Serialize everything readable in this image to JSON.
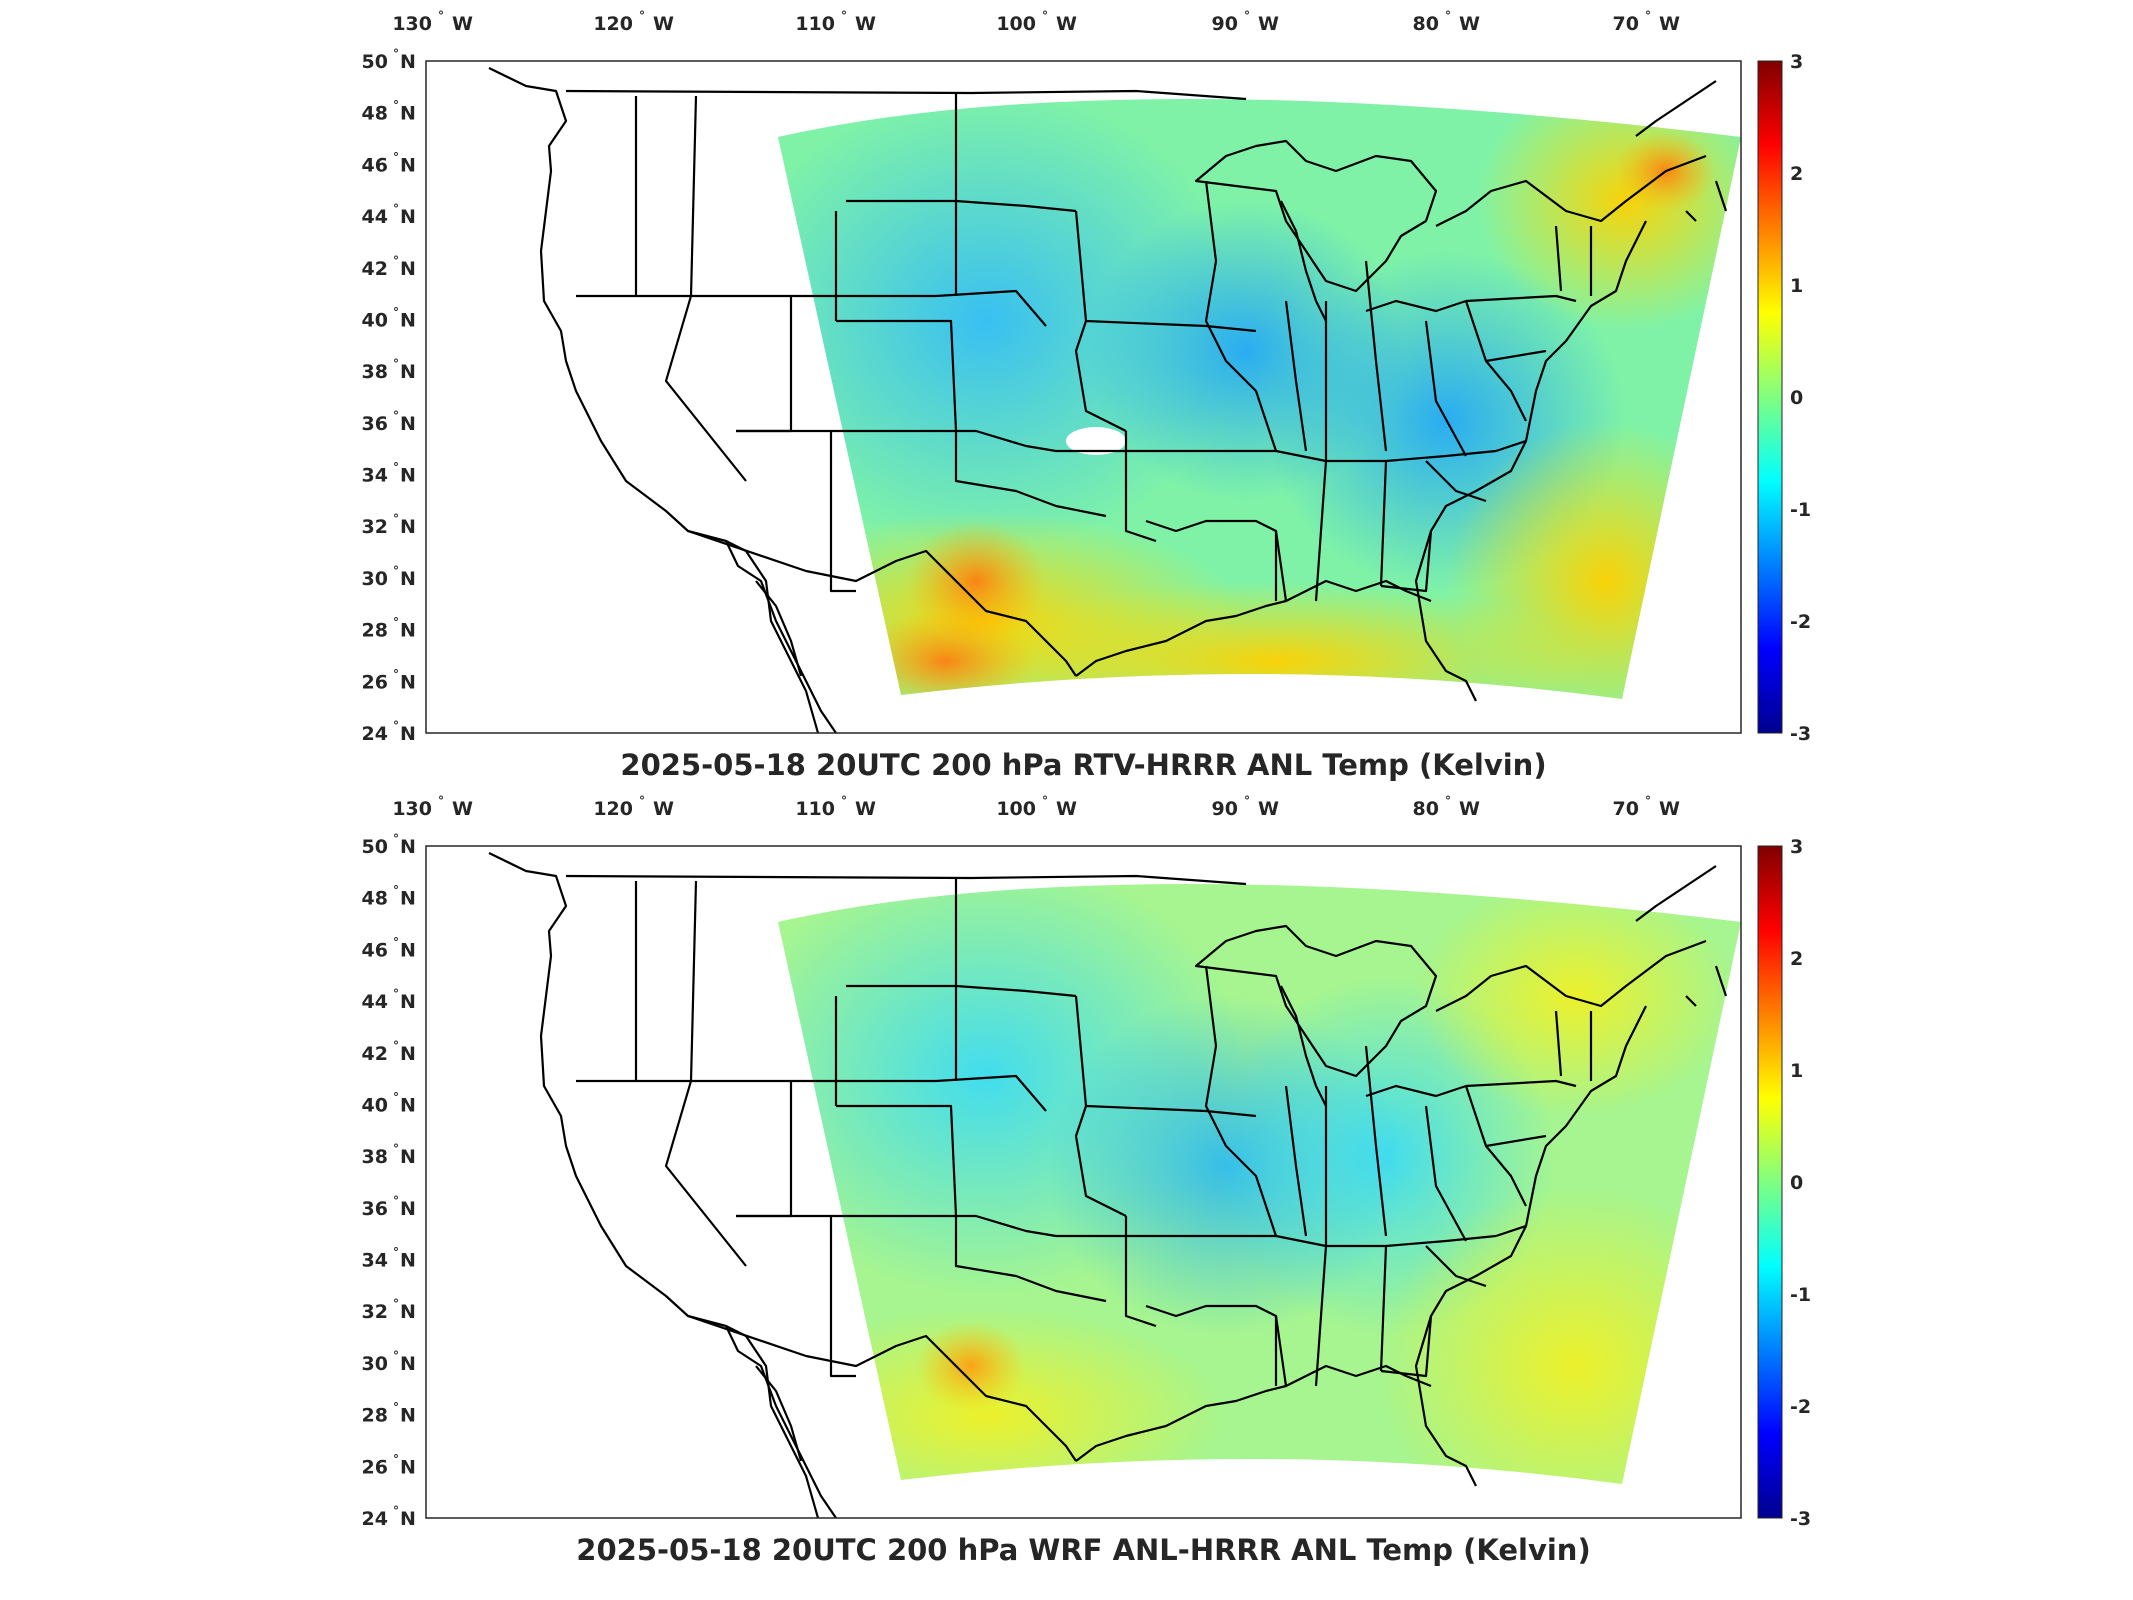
{
  "panels": [
    {
      "title": "2025-05-18 20UTC 200 hPa RTV-HRRR ANL Temp (Kelvin)",
      "field": "rtv",
      "description_colors": {
        "west_region": "bluish cyan",
        "texas": "orange",
        "gulf": "yellow"
      }
    },
    {
      "title": "2025-05-18 20UTC 200 hPa WRF ANL-HRRR ANL Temp (Kelvin)",
      "field": "wrf",
      "description_colors": {
        "west_region": "cyan",
        "texas": "orange",
        "gulf": "yellow-green"
      }
    }
  ],
  "axes": {
    "lon_labels": [
      "130",
      "120",
      "110",
      "100",
      "90",
      "80",
      "70"
    ],
    "lon_suffix": "W",
    "lat_labels": [
      "50",
      "48",
      "46",
      "44",
      "42",
      "40",
      "38",
      "36",
      "34",
      "32",
      "30",
      "28",
      "26",
      "24"
    ],
    "lat_suffix": "N",
    "degree_symbol": "°"
  },
  "colorbar": {
    "ticks": [
      "3",
      "2",
      "1",
      "0",
      "-1",
      "-2",
      "-3"
    ],
    "colormap": "jet",
    "range": [
      -3,
      3
    ],
    "colors": [
      "#00008f",
      "#0000ff",
      "#0080ff",
      "#00ffff",
      "#80ff80",
      "#ffff00",
      "#ff8000",
      "#ff0000",
      "#800000"
    ]
  },
  "map": {
    "projection": "Lambert conformal (HRRR domain)",
    "domain_fill_note": "curved HRRR domain shaded by temperature difference"
  }
}
